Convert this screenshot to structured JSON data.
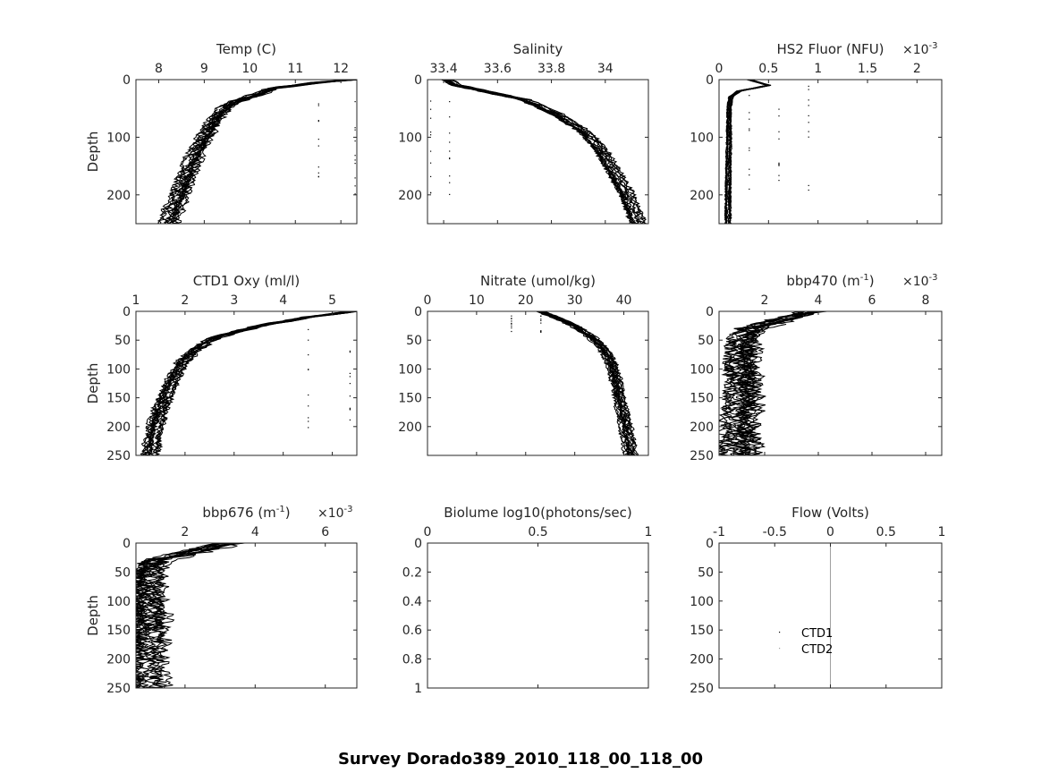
{
  "figure_title": "Survey Dorado389_2010_118_00_118_00",
  "colors": {
    "data": "#000000",
    "axis": "#262626",
    "zero_line": "#a0a0a0"
  },
  "chart_data": [
    {
      "type": "scatter",
      "title": "Temp (C)",
      "ylabel": "Depth",
      "xlim": [
        7.5,
        12.35
      ],
      "ylim": [
        0,
        250
      ],
      "y_reversed": true,
      "x_ticks": [
        8,
        9,
        10,
        11,
        12
      ],
      "x_tick_labels": [
        "8",
        "9",
        "10",
        "11",
        "12"
      ],
      "y_ticks": [
        0,
        100,
        200
      ],
      "y_tick_labels": [
        "0",
        "100",
        "200"
      ],
      "exponent_label": null,
      "profile": {
        "x": [
          12.3,
          11.5,
          10.5,
          10.2,
          9.6,
          9.3,
          9.0,
          8.8,
          8.6,
          8.4,
          8.2
        ],
        "y": [
          0,
          5,
          15,
          25,
          40,
          60,
          100,
          130,
          170,
          210,
          250
        ],
        "spread": 0.25
      },
      "outliers": {
        "x": [
          11.5,
          12.3
        ],
        "y_range": [
          25,
          200
        ]
      }
    },
    {
      "type": "scatter",
      "title": "Salinity",
      "ylabel": "",
      "xlim": [
        33.34,
        34.16
      ],
      "ylim": [
        0,
        250
      ],
      "y_reversed": true,
      "x_ticks": [
        33.4,
        33.6,
        33.8,
        34
      ],
      "x_tick_labels": [
        "33.4",
        "33.6",
        "33.8",
        "34"
      ],
      "y_ticks": [
        0,
        100,
        200
      ],
      "y_tick_labels": [
        "0",
        "100",
        "200"
      ],
      "exponent_label": null,
      "profile": {
        "x": [
          33.41,
          33.45,
          33.55,
          33.7,
          33.82,
          33.92,
          33.98,
          34.03,
          34.08,
          34.12
        ],
        "y": [
          0,
          10,
          20,
          35,
          60,
          90,
          120,
          160,
          200,
          250
        ],
        "spread": 0.03
      },
      "outliers": {
        "x": [
          33.35,
          33.42
        ],
        "y_range": [
          20,
          200
        ]
      }
    },
    {
      "type": "scatter",
      "title": "HS2 Fluor (NFU)",
      "ylabel": "",
      "xlim": [
        0,
        0.00225
      ],
      "ylim": [
        0,
        250
      ],
      "y_reversed": true,
      "x_ticks": [
        0,
        0.0005,
        0.001,
        0.0015,
        0.002
      ],
      "x_tick_labels": [
        "0",
        "0.5",
        "1",
        "1.5",
        "2"
      ],
      "y_ticks": [
        0,
        100,
        200
      ],
      "y_tick_labels": [
        "0",
        "100",
        "200"
      ],
      "exponent_label": "×10-3",
      "profile": {
        "x": [
          0.0003,
          0.0005,
          0.0002,
          0.00012,
          0.0001,
          0.0001,
          9e-05,
          9e-05
        ],
        "y": [
          0,
          10,
          20,
          30,
          50,
          100,
          200,
          250
        ],
        "spread": 3e-05
      },
      "outliers": {
        "x": [
          0.0003,
          0.0006,
          0.0009
        ],
        "y_range": [
          10,
          200
        ]
      }
    },
    {
      "type": "scatter",
      "title": "CTD1 Oxy (ml/l)",
      "ylabel": "Depth",
      "xlim": [
        1,
        5.5
      ],
      "ylim": [
        0,
        250
      ],
      "y_reversed": true,
      "x_ticks": [
        1,
        2,
        3,
        4,
        5
      ],
      "x_tick_labels": [
        "1",
        "2",
        "3",
        "4",
        "5"
      ],
      "y_ticks": [
        0,
        50,
        100,
        150,
        200,
        250
      ],
      "y_tick_labels": [
        "0",
        "50",
        "100",
        "150",
        "200",
        "250"
      ],
      "exponent_label": null,
      "profile": {
        "x": [
          5.4,
          4.5,
          3.5,
          2.6,
          2.2,
          1.9,
          1.7,
          1.5,
          1.35,
          1.25
        ],
        "y": [
          0,
          10,
          25,
          45,
          65,
          90,
          120,
          160,
          200,
          250
        ],
        "spread": 0.2
      },
      "outliers": {
        "x": [
          4.5,
          5.35
        ],
        "y_range": [
          30,
          205
        ]
      }
    },
    {
      "type": "scatter",
      "title": "Nitrate (umol/kg)",
      "ylabel": "",
      "xlim": [
        0,
        45
      ],
      "ylim": [
        0,
        250
      ],
      "y_reversed": true,
      "x_ticks": [
        0,
        10,
        20,
        30,
        40
      ],
      "x_tick_labels": [
        "0",
        "10",
        "20",
        "30",
        "40"
      ],
      "y_ticks": [
        0,
        50,
        100,
        150,
        200
      ],
      "y_tick_labels": [
        "0",
        "50",
        "100",
        "150",
        "200"
      ],
      "exponent_label": null,
      "profile": {
        "x": [
          23,
          26,
          30,
          33.5,
          36,
          37.5,
          38.5,
          39.5,
          40.5,
          41.5
        ],
        "y": [
          0,
          10,
          25,
          45,
          65,
          90,
          120,
          160,
          200,
          250
        ],
        "spread": 1.5
      },
      "outliers": {
        "x": [
          17,
          23
        ],
        "y_range": [
          5,
          42
        ]
      }
    },
    {
      "type": "scatter",
      "title": "bbp470 (m-1)",
      "ylabel": "",
      "xlim": [
        0.0003,
        0.0086
      ],
      "ylim": [
        0,
        250
      ],
      "y_reversed": true,
      "x_ticks": [
        0.002,
        0.004,
        0.006,
        0.008
      ],
      "x_tick_labels": [
        "2",
        "4",
        "6",
        "8"
      ],
      "y_ticks": [
        0,
        50,
        100,
        150,
        200,
        250
      ],
      "y_tick_labels": [
        "0",
        "50",
        "100",
        "150",
        "200",
        "250"
      ],
      "exponent_label": "×10-3",
      "profile": {
        "x": [
          0.0037,
          0.0015,
          0.0012,
          0.0011,
          0.0012,
          0.0011,
          0.001,
          0.001
        ],
        "y": [
          0,
          30,
          50,
          90,
          130,
          170,
          210,
          250
        ],
        "spread": 0.0009
      },
      "outliers": {
        "x": [
          0.0086
        ],
        "y_range": [
          75,
          80
        ]
      }
    },
    {
      "type": "scatter",
      "title": "bbp676 (m-1)",
      "ylabel": "Depth",
      "xlim": [
        0.0006,
        0.0069
      ],
      "ylim": [
        0,
        250
      ],
      "y_reversed": true,
      "x_ticks": [
        0.002,
        0.004,
        0.006
      ],
      "x_tick_labels": [
        "2",
        "4",
        "6"
      ],
      "y_ticks": [
        0,
        50,
        100,
        150,
        200,
        250
      ],
      "y_tick_labels": [
        "0",
        "50",
        "100",
        "150",
        "200",
        "250"
      ],
      "exponent_label": "×10-3",
      "profile": {
        "x": [
          0.0033,
          0.0012,
          0.001,
          0.0009,
          0.001,
          0.0009,
          0.0008,
          0.0009
        ],
        "y": [
          0,
          30,
          50,
          90,
          130,
          170,
          210,
          250
        ],
        "spread": 0.0007
      },
      "outliers": {
        "x": [
          0.0069
        ],
        "y_range": [
          75,
          80
        ]
      }
    },
    {
      "type": "scatter",
      "title": "Biolume log10(photons/sec)",
      "ylabel": "",
      "xlim": [
        0,
        1
      ],
      "ylim": [
        0,
        1
      ],
      "y_reversed": true,
      "x_ticks": [
        0,
        0.5,
        1
      ],
      "x_tick_labels": [
        "0",
        "0.5",
        "1"
      ],
      "y_ticks": [
        0,
        0.2,
        0.4,
        0.6,
        0.8,
        1
      ],
      "y_tick_labels": [
        "0",
        "0.2",
        "0.4",
        "0.6",
        "0.8",
        "1"
      ],
      "exponent_label": null,
      "profile": null,
      "outliers": null
    },
    {
      "type": "line",
      "title": "Flow (Volts)",
      "ylabel": "",
      "xlim": [
        -1,
        1
      ],
      "ylim": [
        0,
        250
      ],
      "y_reversed": true,
      "x_ticks": [
        -1,
        -0.5,
        0,
        0.5,
        1
      ],
      "x_tick_labels": [
        "-1",
        "-0.5",
        "0",
        "0.5",
        "1"
      ],
      "y_ticks": [
        0,
        50,
        100,
        150,
        200,
        250
      ],
      "y_tick_labels": [
        "0",
        "50",
        "100",
        "150",
        "200",
        "250"
      ],
      "exponent_label": null,
      "vertical_line_x": 0,
      "legend": [
        "CTD1",
        "CTD2"
      ],
      "legend_location": "center-left",
      "profile": null,
      "outliers": null
    }
  ]
}
